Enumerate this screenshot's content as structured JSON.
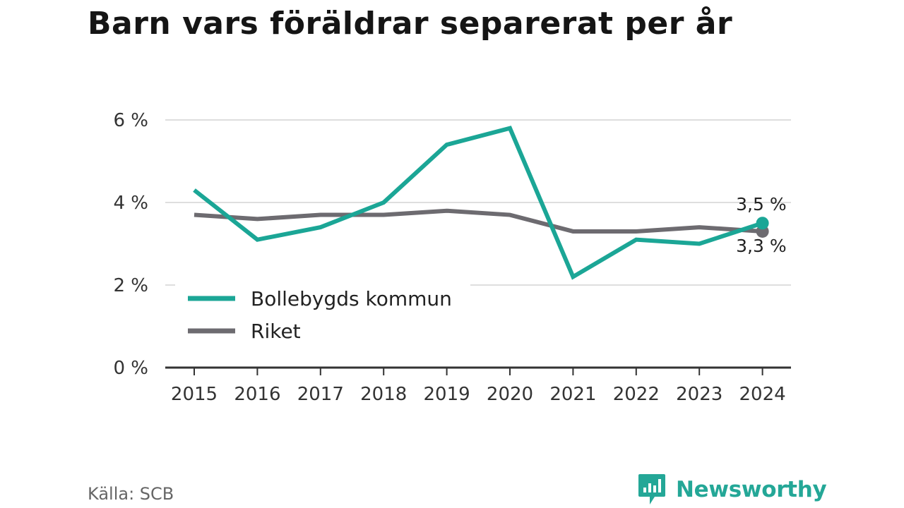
{
  "title": "Barn vars föräldrar separerat per år",
  "source": "Källa: SCB",
  "brand": {
    "name": "Newsworthy",
    "icon": "newsworthy-logo-icon",
    "color": "#24a797"
  },
  "chart_data": {
    "type": "line",
    "title": "Barn vars föräldrar separerat per år",
    "xlabel": "",
    "ylabel": "",
    "x": [
      "2015",
      "2016",
      "2017",
      "2018",
      "2019",
      "2020",
      "2021",
      "2022",
      "2023",
      "2024"
    ],
    "ylim": [
      0,
      6.5
    ],
    "yticks": [
      0,
      2,
      4,
      6
    ],
    "ytick_labels": [
      "0 %",
      "2 %",
      "4 %",
      "6 %"
    ],
    "grid": true,
    "legend_position": "bottom-left",
    "series": [
      {
        "name": "Bollebygds kommun",
        "color": "#1ba696",
        "values": [
          4.3,
          3.1,
          3.4,
          4.0,
          5.4,
          5.8,
          2.2,
          3.1,
          3.0,
          3.5
        ],
        "end_label": "3,5 %"
      },
      {
        "name": "Riket",
        "color": "#6d6b70",
        "values": [
          3.7,
          3.6,
          3.7,
          3.7,
          3.8,
          3.7,
          3.3,
          3.3,
          3.4,
          3.3
        ],
        "end_label": "3,3 %"
      }
    ]
  }
}
